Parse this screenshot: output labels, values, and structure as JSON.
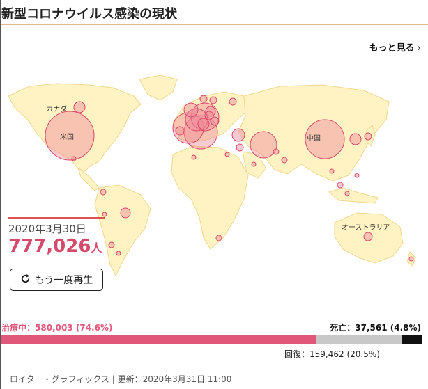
{
  "header": {
    "title": "新型コロナウイルス感染の現状"
  },
  "nav": {
    "more_label": "もっと見る"
  },
  "map": {
    "labels": {
      "canada": "カナダ",
      "usa": "米国",
      "china": "中国",
      "australia": "オーストラリア"
    }
  },
  "summary": {
    "date": "2020年3月30日",
    "count": "777,026",
    "count_unit": "人",
    "replay_label": "もう一度再生"
  },
  "breakdown": {
    "treatment_label": "治療中：580,003 (74.6%)",
    "deaths_label": "死亡：37,561 (4.8%)",
    "recovered_label": "回復：159,462 (20.5%)",
    "fractions": {
      "treatment": 0.746,
      "recovered": 0.205,
      "deaths": 0.048
    }
  },
  "footer": {
    "credit": "ロイター・グラフィックス | 更新：2020年3月31日 11:00"
  },
  "colors": {
    "accent": "#e0577a",
    "land": "#fff3c4",
    "land_border": "#f0d68c",
    "bubble_fill": "#f08a9a",
    "bubble_stroke": "#d9466a",
    "recovered": "#c8c8c8",
    "deaths": "#111111"
  }
}
